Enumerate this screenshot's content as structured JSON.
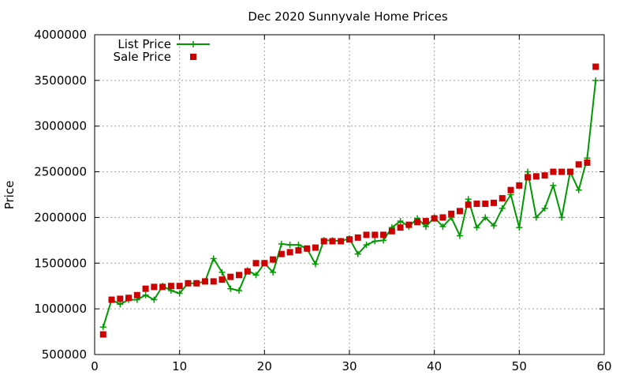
{
  "chart_data": {
    "type": "line",
    "title": "Dec 2020 Sunnyvale Home Prices",
    "xlabel": "",
    "ylabel": "Price",
    "xlim": [
      0,
      60
    ],
    "ylim": [
      500000,
      4000000
    ],
    "x_ticks": [
      0,
      10,
      20,
      30,
      40,
      50,
      60
    ],
    "y_ticks": [
      500000,
      1000000,
      1500000,
      2000000,
      2500000,
      3000000,
      3500000,
      4000000
    ],
    "x_tick_labels": [
      "0",
      "10",
      "20",
      "30",
      "40",
      "50",
      "60"
    ],
    "y_tick_labels": [
      "500000",
      "1000000",
      "1500000",
      "2000000",
      "2500000",
      "3000000",
      "3500000",
      "4000000"
    ],
    "grid": true,
    "legend_position": "top-left",
    "x": [
      1,
      2,
      3,
      4,
      5,
      6,
      7,
      8,
      9,
      10,
      11,
      12,
      13,
      14,
      15,
      16,
      17,
      18,
      19,
      20,
      21,
      22,
      23,
      24,
      25,
      26,
      27,
      28,
      29,
      30,
      31,
      32,
      33,
      34,
      35,
      36,
      37,
      38,
      39,
      40,
      41,
      42,
      43,
      44,
      45,
      46,
      47,
      48,
      49,
      50,
      51,
      52,
      53,
      54,
      55,
      56,
      57,
      58,
      59
    ],
    "series": [
      {
        "name": "List Price",
        "style": "line+cross",
        "color": "#009900",
        "values": [
          800000,
          1100000,
          1050000,
          1100000,
          1100000,
          1150000,
          1100000,
          1250000,
          1200000,
          1170000,
          1280000,
          1280000,
          1300000,
          1550000,
          1400000,
          1220000,
          1200000,
          1420000,
          1370000,
          1500000,
          1400000,
          1710000,
          1700000,
          1700000,
          1660000,
          1490000,
          1750000,
          1750000,
          1740000,
          1770000,
          1600000,
          1700000,
          1740000,
          1750000,
          1890000,
          1960000,
          1900000,
          1990000,
          1900000,
          2000000,
          1900000,
          2000000,
          1800000,
          2200000,
          1890000,
          2000000,
          1910000,
          2100000,
          2250000,
          1890000,
          2500000,
          2000000,
          2100000,
          2350000,
          2000000,
          2500000,
          2300000,
          2650000,
          3500000
        ]
      },
      {
        "name": "Sale Price",
        "style": "square",
        "color": "#cc0000",
        "values": [
          720000,
          1100000,
          1110000,
          1120000,
          1150000,
          1220000,
          1240000,
          1240000,
          1250000,
          1250000,
          1280000,
          1280000,
          1300000,
          1300000,
          1320000,
          1350000,
          1370000,
          1410000,
          1500000,
          1500000,
          1540000,
          1600000,
          1620000,
          1640000,
          1660000,
          1670000,
          1740000,
          1740000,
          1740000,
          1760000,
          1780000,
          1810000,
          1810000,
          1810000,
          1850000,
          1890000,
          1920000,
          1950000,
          1960000,
          1990000,
          2000000,
          2040000,
          2070000,
          2140000,
          2150000,
          2150000,
          2160000,
          2210000,
          2300000,
          2350000,
          2440000,
          2450000,
          2460000,
          2500000,
          2500000,
          2500000,
          2580000,
          2600000,
          3650000
        ]
      }
    ]
  }
}
